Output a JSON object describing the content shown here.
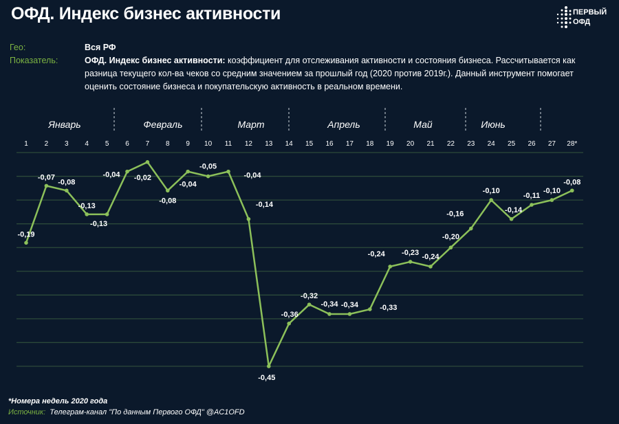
{
  "header": {
    "title": "ОФД. Индекс бизнес активности",
    "logo_text": [
      "ПЕРВЫЙ",
      "ОФД"
    ]
  },
  "meta": {
    "geo_label": "Гео:",
    "geo_value": "Вся РФ",
    "indicator_label": "Показатель:",
    "indicator_name": "ОФД. Индекс бизнес активности:",
    "indicator_desc": " коэффициент для отслеживания активности и состояния бизнеса. Рассчитывается как разница текущего кол-ва чеков со средним значением за прошлый год (2020 против 2019г.). Данный инструмент помогает оценить состояние бизнеса и покупательскую активность в реальном времени."
  },
  "footer": {
    "note": "*Номера недель 2020 года",
    "source_label": "Источник:",
    "source_value": "Телеграм-канал \"По данным Первого ОФД\" @AC1OFD"
  },
  "colors": {
    "background": "#0b192b",
    "line": "#8cc05a",
    "accent": "#7cb342",
    "grid": "#2c4a3a"
  },
  "chart_data": {
    "type": "line",
    "title": "",
    "xlabel": "",
    "ylabel": "",
    "grid": true,
    "ylim": [
      -0.45,
      0
    ],
    "months": [
      "Январь",
      "Февраль",
      "Март",
      "Апрель",
      "Май",
      "Июнь"
    ],
    "x": [
      "1",
      "2",
      "3",
      "4",
      "5",
      "6",
      "7",
      "8",
      "9",
      "10",
      "11",
      "12",
      "13",
      "14",
      "15",
      "16",
      "17",
      "18",
      "19",
      "20",
      "21",
      "22",
      "23",
      "24",
      "25",
      "26",
      "27",
      "28*"
    ],
    "values": [
      -0.19,
      -0.07,
      -0.08,
      -0.13,
      -0.13,
      -0.04,
      -0.02,
      -0.08,
      -0.04,
      -0.05,
      -0.04,
      -0.14,
      -0.45,
      -0.36,
      -0.32,
      -0.34,
      -0.34,
      -0.33,
      -0.24,
      -0.23,
      -0.24,
      -0.2,
      -0.16,
      -0.1,
      -0.14,
      -0.11,
      -0.1,
      -0.08
    ],
    "labels": [
      "-0,19",
      "-0,07",
      "-0,08",
      "-0,13",
      "-0,13",
      "-0,04",
      "-0,02",
      "-0,08",
      "-0,04",
      "-0,05",
      "-0,04",
      "-0,14",
      "-0,45",
      "-0,36",
      "-0,32",
      "-0,34",
      "-0,34",
      "-0,33",
      "-0,24",
      "-0,23",
      "-0,24",
      "-0,20",
      "-0,16",
      "-0,10",
      "-0,14",
      "-0,11",
      "-0,10",
      "-0,08"
    ]
  }
}
